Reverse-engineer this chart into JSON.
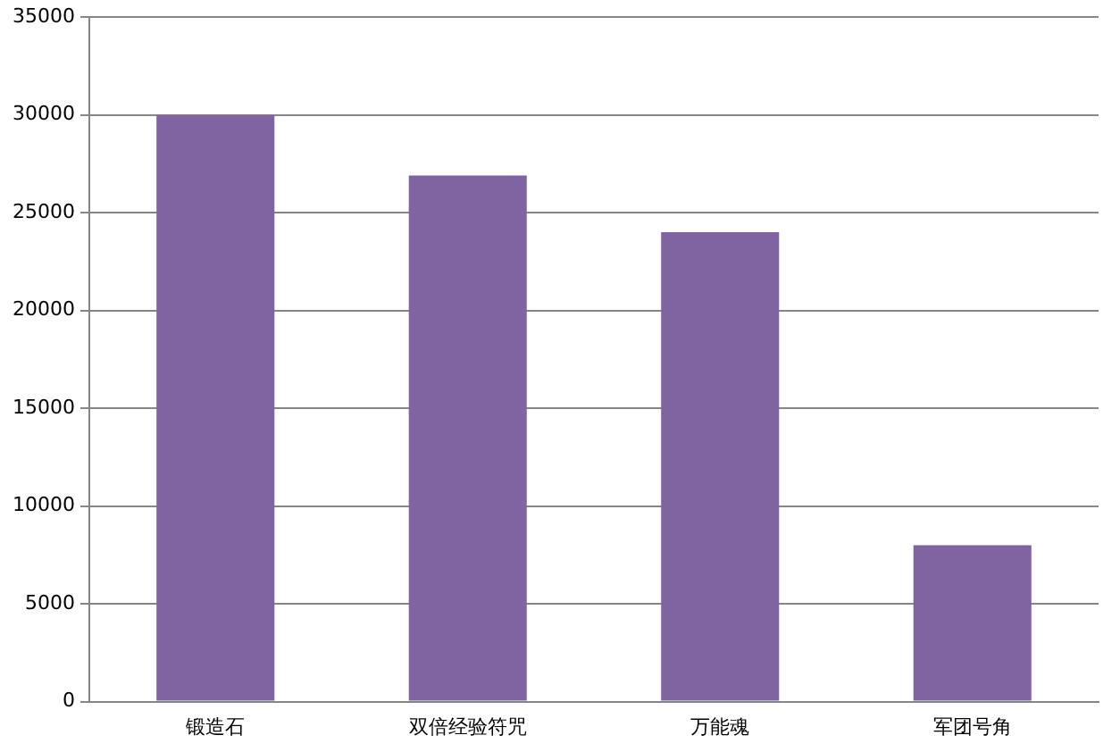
{
  "chart_data": {
    "type": "bar",
    "categories": [
      "锻造石",
      "双倍经验符咒",
      "万能魂",
      "军团号角"
    ],
    "values": [
      30000,
      26900,
      24000,
      8000
    ],
    "color": "#8064a2",
    "ylim": [
      0,
      35000
    ],
    "yticks": [
      0,
      5000,
      10000,
      15000,
      20000,
      25000,
      30000,
      35000
    ],
    "grid": "y"
  }
}
